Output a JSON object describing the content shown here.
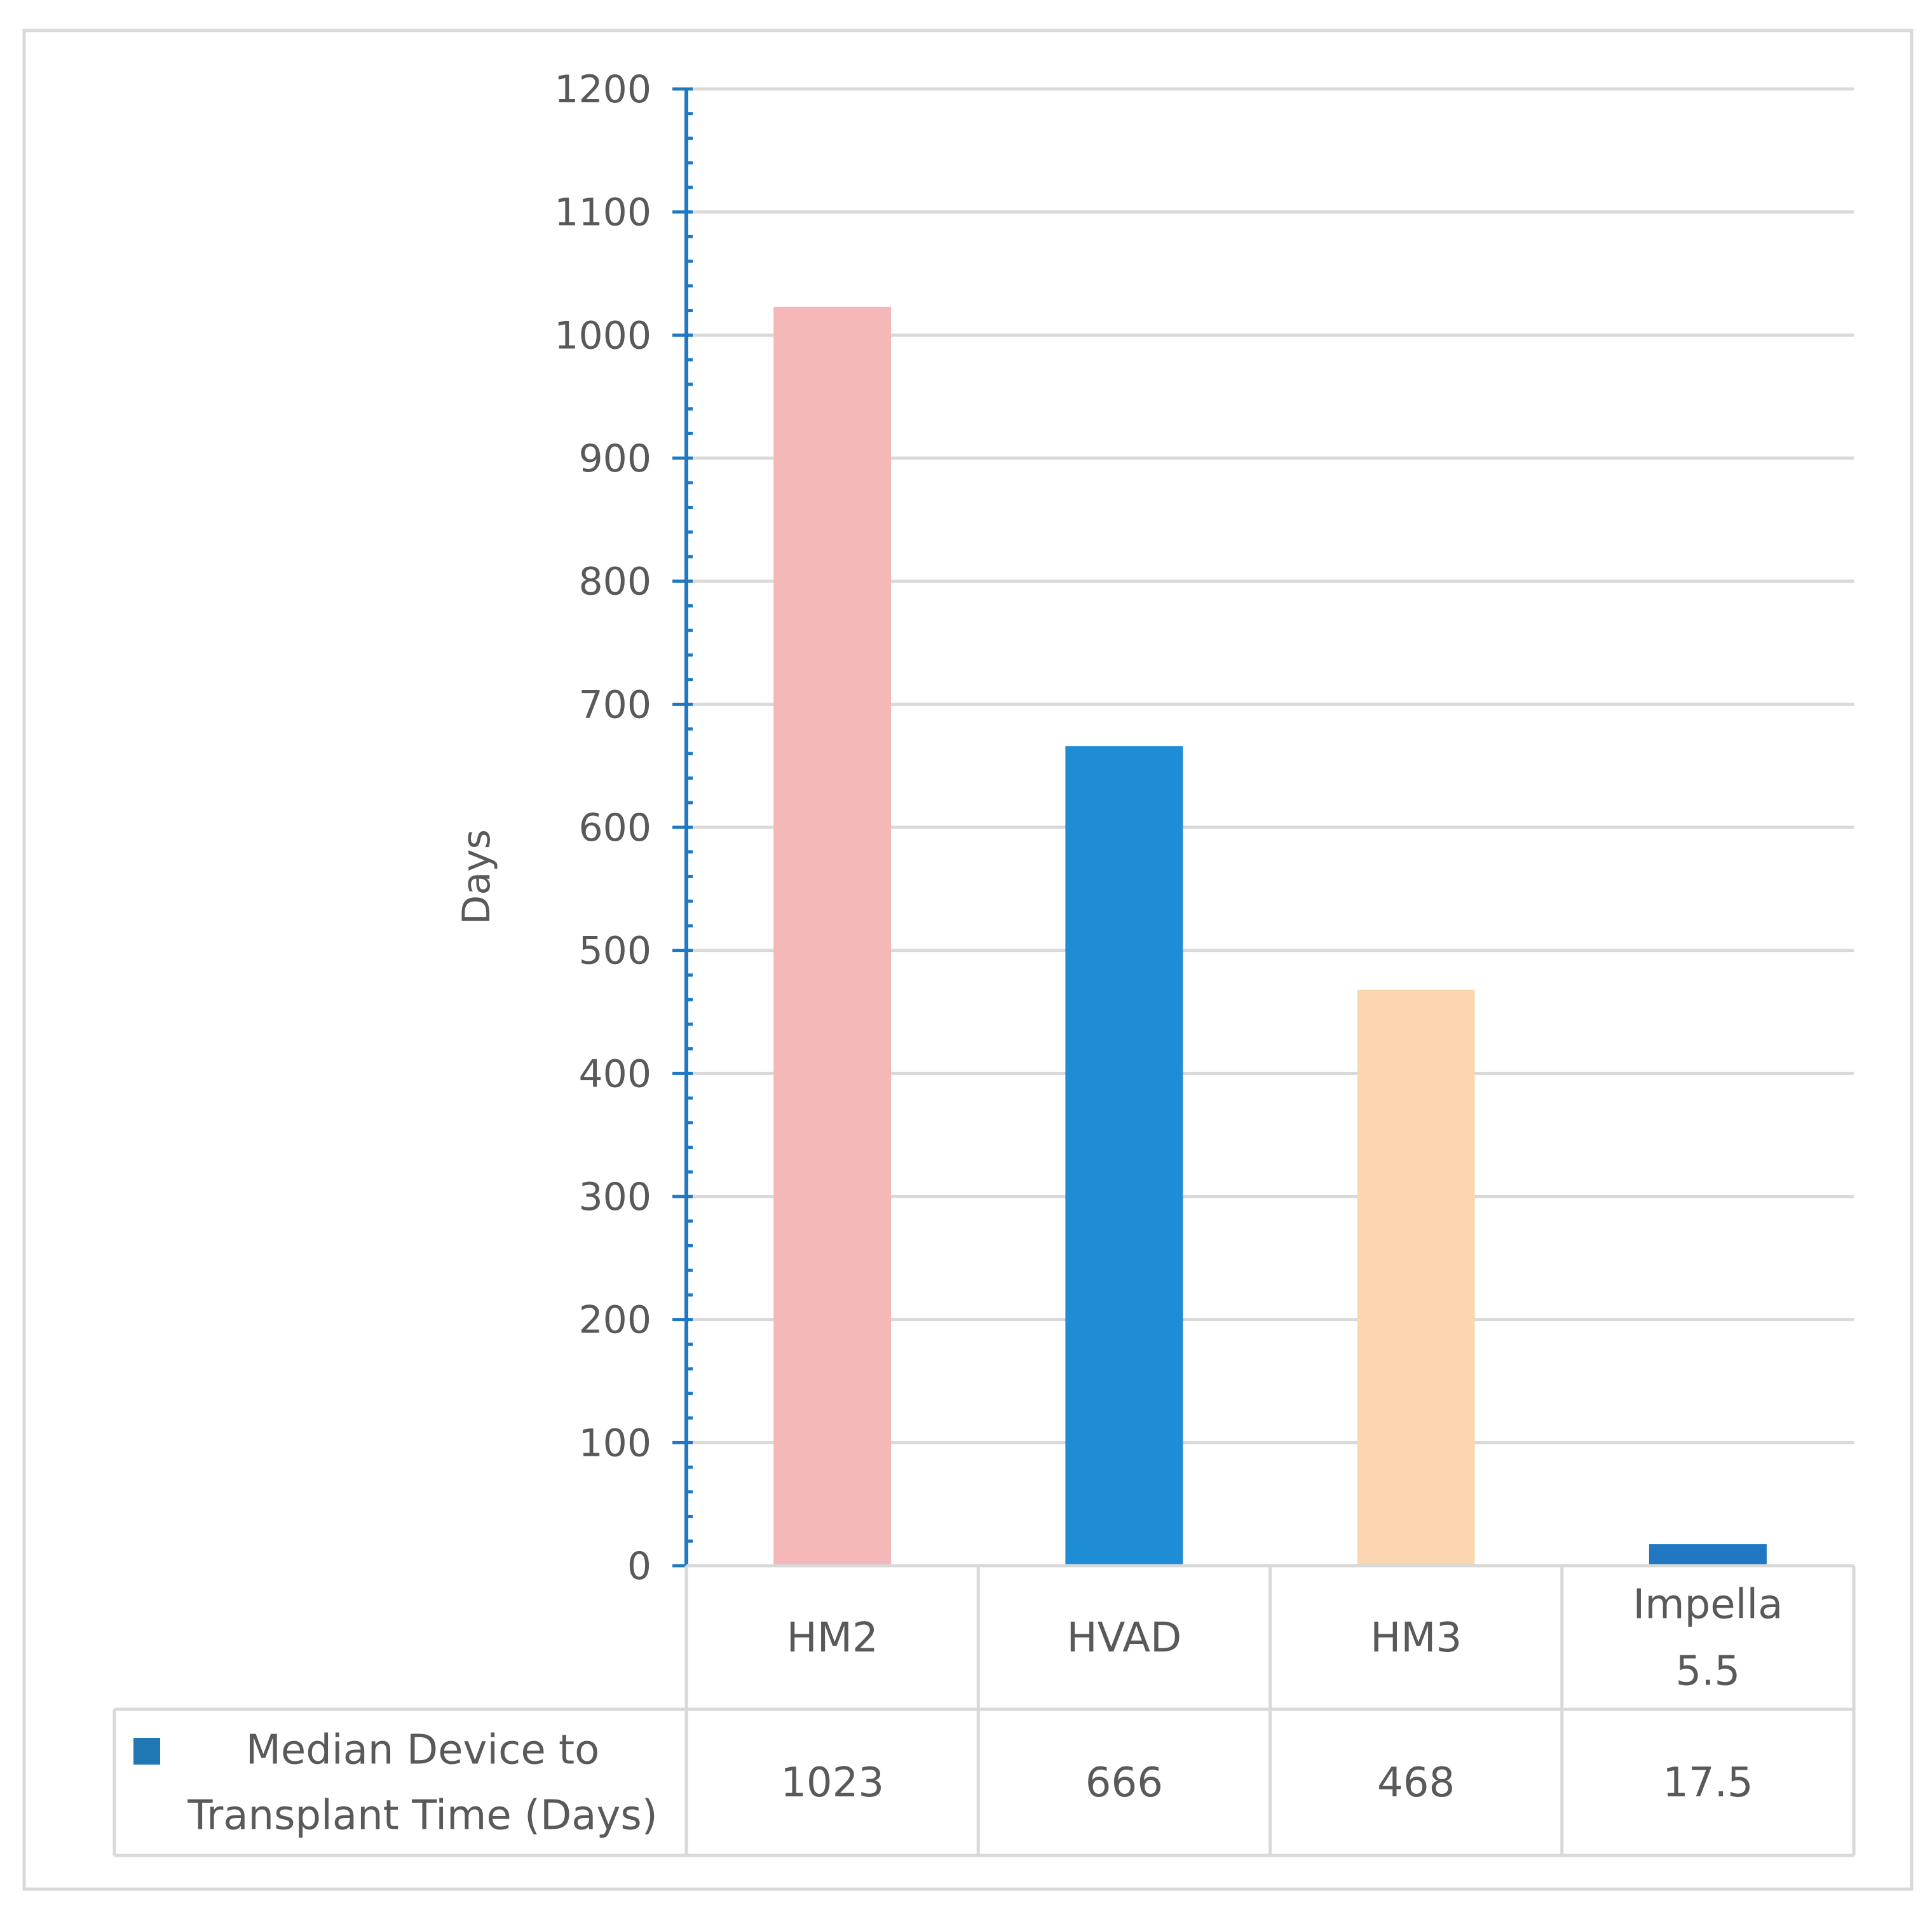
{
  "chart_data": {
    "type": "bar",
    "ylabel": "Days",
    "ylim": [
      0,
      1200
    ],
    "y_major_step": 100,
    "y_minor_step": 20,
    "yticks": [
      "0",
      "100",
      "200",
      "300",
      "400",
      "500",
      "600",
      "700",
      "800",
      "900",
      "1000",
      "1100",
      "1200"
    ],
    "grid": true,
    "legend_placement": "data-table",
    "categories": [
      [
        "HM2"
      ],
      [
        "HVAD"
      ],
      [
        "HM3"
      ],
      [
        "Impella",
        "5.5"
      ]
    ],
    "series": [
      {
        "name": [
          "Median Device to",
          "Transplant Time (Days)"
        ],
        "values": [
          1023,
          666,
          468,
          17.5
        ],
        "value_labels": [
          "1023",
          "666",
          "468",
          "17.5"
        ],
        "legend_color": "#1F78B4",
        "bar_colors": [
          "#F4B8B8",
          "#1F8DD6",
          "#FCD5B1",
          "#1F78C1"
        ]
      }
    ]
  }
}
